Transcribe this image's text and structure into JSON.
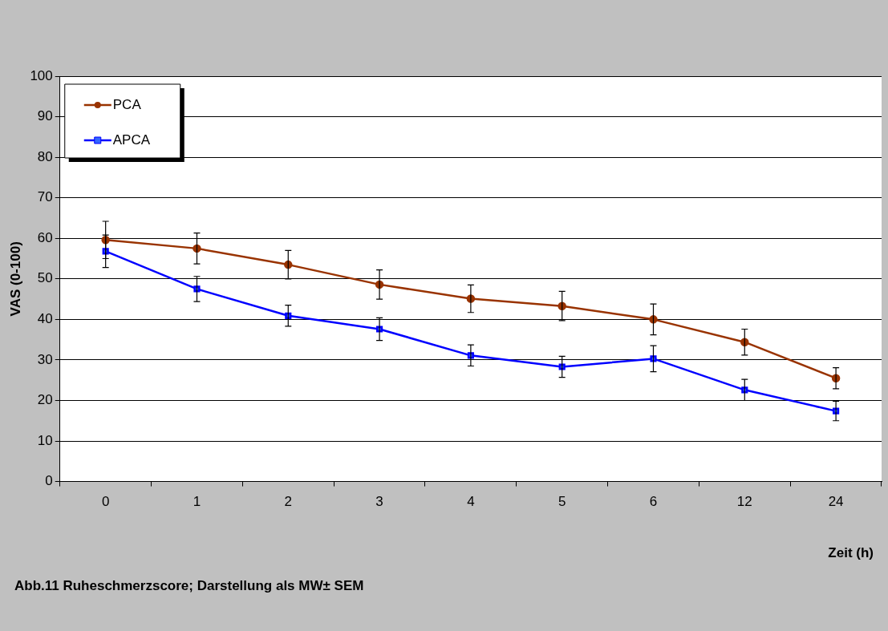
{
  "chart_data": {
    "type": "line",
    "ylabel": "VAS (0-100)",
    "xlabel": "Zeit (h)",
    "annotations": [
      "Abb.11 Ruheschmerzscore; Darstellung als MW± SEM"
    ],
    "categories": [
      "0",
      "1",
      "2",
      "3",
      "4",
      "5",
      "6",
      "12",
      "24"
    ],
    "series": [
      {
        "name": "PCA",
        "color": "#993300",
        "marker": "circle",
        "values": [
          59.6,
          57.5,
          53.5,
          48.6,
          45.1,
          43.3,
          40,
          34.4,
          25.5
        ],
        "errors": [
          4.6,
          3.8,
          3.5,
          3.6,
          3.4,
          3.6,
          3.8,
          3.2,
          2.6
        ]
      },
      {
        "name": "APCA",
        "color": "#0000ff",
        "marker": "square",
        "values": [
          56.8,
          47.5,
          40.9,
          37.6,
          31.1,
          28.3,
          30.3,
          22.6,
          17.4
        ],
        "errors": [
          4,
          3.1,
          2.6,
          2.8,
          2.6,
          2.6,
          3.2,
          2.6,
          2.4
        ]
      }
    ],
    "ylim": [
      0,
      100
    ],
    "yticks": [
      0,
      10,
      20,
      30,
      40,
      50,
      60,
      70,
      80,
      90,
      100
    ],
    "grid": "y",
    "legend": "top left",
    "line_style": "solid"
  }
}
